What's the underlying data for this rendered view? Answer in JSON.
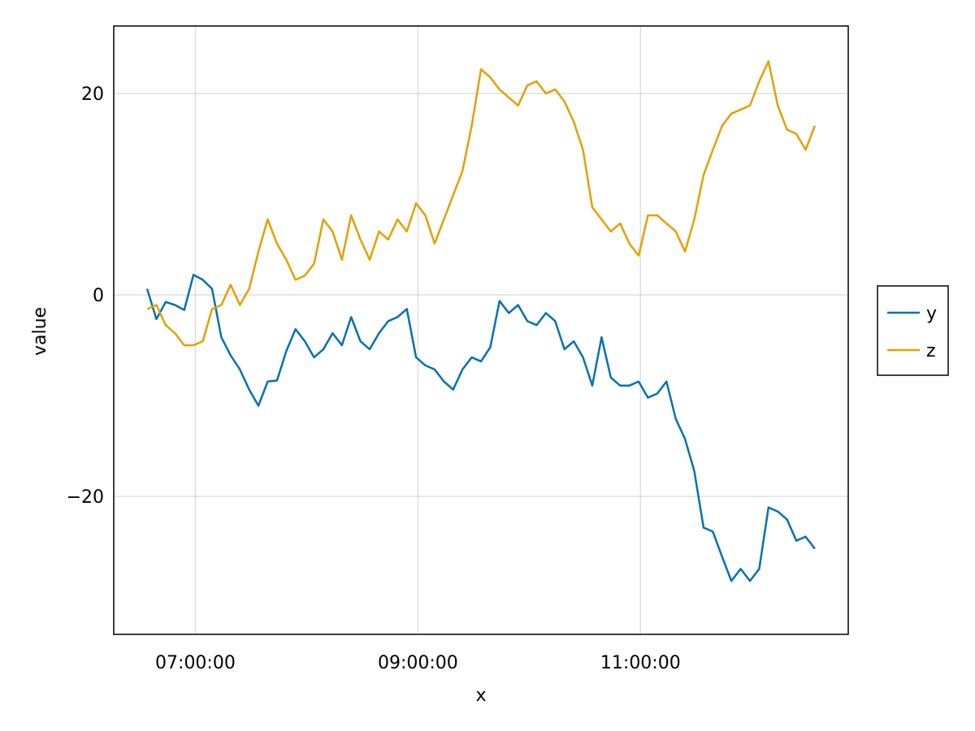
{
  "chart_data": {
    "type": "line",
    "x_label": "x",
    "y_label": "value",
    "x": [
      "06:34:00",
      "06:39:00",
      "06:44:00",
      "06:49:00",
      "06:54:00",
      "06:59:00",
      "07:04:00",
      "07:09:00",
      "07:14:00",
      "07:19:00",
      "07:24:00",
      "07:29:00",
      "07:34:00",
      "07:39:00",
      "07:44:00",
      "07:49:00",
      "07:54:00",
      "07:59:00",
      "08:04:00",
      "08:09:00",
      "08:14:00",
      "08:19:00",
      "08:24:00",
      "08:29:00",
      "08:34:00",
      "08:39:00",
      "08:44:00",
      "08:49:00",
      "08:54:00",
      "08:59:00",
      "09:04:00",
      "09:09:00",
      "09:14:00",
      "09:19:00",
      "09:24:00",
      "09:29:00",
      "09:34:00",
      "09:39:00",
      "09:44:00",
      "09:49:00",
      "09:54:00",
      "09:59:00",
      "10:04:00",
      "10:09:00",
      "10:14:00",
      "10:19:00",
      "10:24:00",
      "10:29:00",
      "10:34:00",
      "10:39:00",
      "10:44:00",
      "10:49:00",
      "10:54:00",
      "10:59:00",
      "11:04:00",
      "11:09:00",
      "11:14:00",
      "11:19:00",
      "11:24:00",
      "11:29:00",
      "11:34:00",
      "11:39:00",
      "11:44:00",
      "11:49:00",
      "11:54:00",
      "11:59:00",
      "12:04:00",
      "12:09:00",
      "12:14:00",
      "12:19:00",
      "12:24:00",
      "12:29:00",
      "12:34:00"
    ],
    "series": [
      {
        "name": "y",
        "color": "#0072b2",
        "values": [
          0.6,
          -2.4,
          -0.7,
          -1,
          -1.5,
          2,
          1.5,
          0.6,
          -4.2,
          -6,
          -7.4,
          -9.4,
          -11,
          -8.6,
          -8.5,
          -5.6,
          -3.4,
          -4.6,
          -6.2,
          -5.4,
          -3.8,
          -5,
          -2.2,
          -4.6,
          -5.4,
          -3.8,
          -2.6,
          -2.2,
          -1.4,
          -6.2,
          -7,
          -7.4,
          -8.6,
          -9.4,
          -7.4,
          -6.2,
          -6.6,
          -5.2,
          -0.6,
          -1.8,
          -1,
          -2.6,
          -3,
          -1.8,
          -2.6,
          -5.4,
          -4.6,
          -6.2,
          -9,
          -4.2,
          -8.2,
          -9,
          -9,
          -8.6,
          -10.2,
          -9.8,
          -8.6,
          -12.3,
          -14.3,
          -17.5,
          -23.1,
          -23.5,
          -26,
          -28.4,
          -27.2,
          -28.4,
          -27.2,
          -21.1,
          -21.5,
          -22.3,
          -24.4,
          -24,
          -25.2
        ]
      },
      {
        "name": "z",
        "color": "#e69f00",
        "values": [
          -1.4,
          -1,
          -3,
          -3.8,
          -5,
          -5,
          -4.6,
          -1.4,
          -1,
          1,
          -1,
          0.6,
          4.3,
          7.5,
          5.1,
          3.5,
          1.5,
          1.9,
          3.1,
          7.5,
          6.3,
          3.5,
          7.9,
          5.5,
          3.5,
          6.3,
          5.5,
          7.5,
          6.3,
          9.1,
          7.9,
          5.1,
          7.5,
          9.9,
          12.3,
          16.8,
          22.4,
          21.6,
          20.4,
          19.6,
          18.8,
          20.8,
          21.2,
          20,
          20.4,
          19.2,
          17.2,
          14.4,
          8.7,
          7.5,
          6.3,
          7.1,
          5.1,
          3.9,
          7.9,
          7.9,
          7.1,
          6.3,
          4.3,
          7.5,
          11.9,
          14.4,
          16.8,
          18,
          18.4,
          18.8,
          21.2,
          23.2,
          18.8,
          16.4,
          16,
          14.4,
          16.8
        ]
      }
    ],
    "xlim": [
      "06:16:00",
      "12:52:00"
    ],
    "xticks": [
      "07:00:00",
      "09:00:00",
      "11:00:00"
    ],
    "ylim": [
      -33.7,
      26.7
    ],
    "yticks": [
      {
        "value": -20,
        "label": "−20"
      },
      0,
      20
    ],
    "grid": true,
    "legend": "right"
  }
}
